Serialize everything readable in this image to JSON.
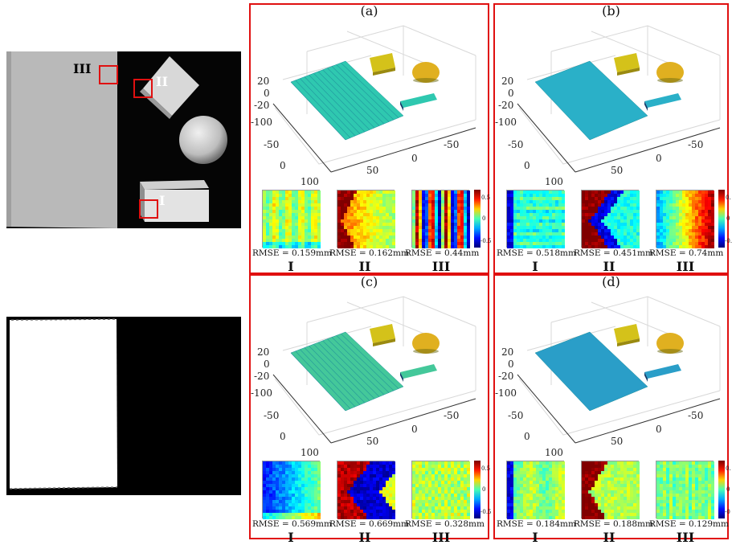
{
  "photo_top": {
    "roi_labels": [
      "I",
      "II",
      "III"
    ]
  },
  "panels": [
    {
      "letter": "(a)",
      "z_ticks": [
        "20",
        "0",
        "-20"
      ],
      "y_ticks": [
        "-100",
        "-50",
        "0",
        "100"
      ],
      "x_ticks": [
        "50",
        "0",
        "-50"
      ],
      "patches": [
        {
          "rmse": "RMSE = 0.159mm",
          "label": "I"
        },
        {
          "rmse": "RMSE = 0.162mm",
          "label": "II"
        },
        {
          "rmse": "RMSE = 0.44mm",
          "label": "III"
        }
      ],
      "colorbar_ticks": [
        "0.5",
        "0",
        "-0.5"
      ]
    },
    {
      "letter": "(b)",
      "z_ticks": [
        "20",
        "0",
        "-20"
      ],
      "y_ticks": [
        "-100",
        "-50",
        "0",
        "100"
      ],
      "x_ticks": [
        "50",
        "0",
        "-50"
      ],
      "patches": [
        {
          "rmse": "RMSE = 0.518mm",
          "label": "I"
        },
        {
          "rmse": "RMSE = 0.451mm",
          "label": "II"
        },
        {
          "rmse": "RMSE = 0.74mm",
          "label": "III"
        }
      ],
      "colorbar_ticks": [
        "0.",
        "0",
        "-0."
      ]
    },
    {
      "letter": "(c)",
      "z_ticks": [
        "20",
        "0",
        "-20"
      ],
      "y_ticks": [
        "-100",
        "-50",
        "0",
        "100"
      ],
      "x_ticks": [
        "50",
        "0",
        "-50"
      ],
      "patches": [
        {
          "rmse": "RMSE = 0.569mm",
          "label": "I"
        },
        {
          "rmse": "RMSE = 0.669mm",
          "label": "II"
        },
        {
          "rmse": "RMSE = 0.328mm",
          "label": "III"
        }
      ],
      "colorbar_ticks": [
        "0.5",
        "0",
        "-0.5"
      ]
    },
    {
      "letter": "(d)",
      "z_ticks": [
        "20",
        "0",
        "-20"
      ],
      "y_ticks": [
        "-100",
        "-50",
        "0",
        "100"
      ],
      "x_ticks": [
        "50",
        "0",
        "-50"
      ],
      "patches": [
        {
          "rmse": "RMSE = 0.184mm",
          "label": "I"
        },
        {
          "rmse": "RMSE = 0.188mm",
          "label": "II"
        },
        {
          "rmse": "RMSE = 0.129mm",
          "label": "III"
        }
      ],
      "colorbar_ticks": [
        "0.",
        "0",
        "-0"
      ]
    }
  ],
  "colors": {
    "frame": "#e01010",
    "plane_a": "#2fc8b0",
    "plane_b": "#2ab0c8",
    "plane_c": "#44c89a",
    "plane_d": "#2a9ec8",
    "cube": "#d4c21a",
    "sphere": "#e0b020"
  }
}
